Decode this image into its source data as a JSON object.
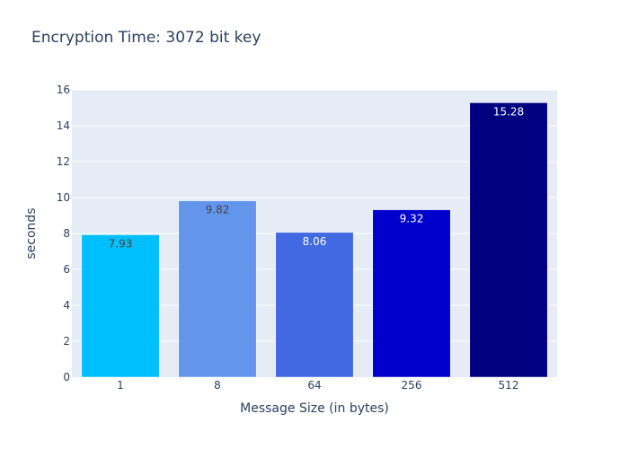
{
  "chart_data": {
    "type": "bar",
    "title": "Encryption Time: 3072 bit key",
    "xlabel": "Message Size (in bytes)",
    "ylabel": "seconds",
    "categories": [
      "1",
      "8",
      "64",
      "256",
      "512"
    ],
    "values": [
      7.93,
      9.82,
      8.06,
      9.32,
      15.28
    ],
    "colors": [
      "#00bfff",
      "#6495ed",
      "#4169e1",
      "#0000cd",
      "#000080"
    ],
    "label_colors": [
      "#444444",
      "#444444",
      "#ffffff",
      "#ffffff",
      "#ffffff"
    ],
    "ylim": [
      0,
      16
    ],
    "yticks": [
      0,
      2,
      4,
      6,
      8,
      10,
      12,
      14,
      16
    ],
    "grid": true,
    "legend": "none",
    "plot_bg": "#e5ecf6"
  }
}
